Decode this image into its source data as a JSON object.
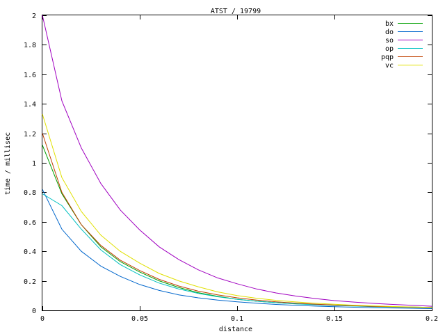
{
  "chart_data": {
    "type": "line",
    "title": "ATST / 19799",
    "xlabel": "distance",
    "ylabel": "time / millisec",
    "xlim": [
      0,
      0.2
    ],
    "ylim": [
      0,
      2
    ],
    "xticks": [
      "0",
      "0.05",
      "0.1",
      "0.15",
      "0.2"
    ],
    "xtick_values": [
      0,
      0.05,
      0.1,
      0.15,
      0.2
    ],
    "yticks": [
      "0",
      "0.2",
      "0.4",
      "0.6",
      "0.8",
      "1",
      "1.2",
      "1.4",
      "1.6",
      "1.8",
      "2"
    ],
    "ytick_values": [
      0,
      0.2,
      0.4,
      0.6,
      0.8,
      1.0,
      1.2,
      1.4,
      1.6,
      1.8,
      2.0
    ],
    "grid": false,
    "legend_position": "top-right",
    "x": [
      0,
      0.01,
      0.02,
      0.03,
      0.04,
      0.05,
      0.06,
      0.07,
      0.08,
      0.09,
      0.1,
      0.11,
      0.12,
      0.13,
      0.14,
      0.15,
      0.16,
      0.17,
      0.18,
      0.19,
      0.2
    ],
    "series": [
      {
        "name": "bx",
        "color": "#00a000",
        "values": [
          1.12,
          0.79,
          0.58,
          0.43,
          0.33,
          0.26,
          0.2,
          0.155,
          0.12,
          0.095,
          0.075,
          0.062,
          0.052,
          0.045,
          0.039,
          0.034,
          0.03,
          0.027,
          0.024,
          0.022,
          0.02
        ]
      },
      {
        "name": "do",
        "color": "#0066cc",
        "values": [
          0.82,
          0.55,
          0.4,
          0.3,
          0.23,
          0.175,
          0.135,
          0.105,
          0.085,
          0.07,
          0.058,
          0.048,
          0.04,
          0.034,
          0.029,
          0.025,
          0.021,
          0.018,
          0.016,
          0.014,
          0.012
        ]
      },
      {
        "name": "so",
        "color": "#a000c0",
        "values": [
          2.0,
          1.42,
          1.1,
          0.86,
          0.68,
          0.545,
          0.43,
          0.345,
          0.275,
          0.22,
          0.18,
          0.145,
          0.118,
          0.097,
          0.08,
          0.066,
          0.056,
          0.047,
          0.04,
          0.034,
          0.028
        ]
      },
      {
        "name": "op",
        "color": "#00c0c0",
        "values": [
          0.79,
          0.71,
          0.55,
          0.41,
          0.31,
          0.24,
          0.185,
          0.145,
          0.115,
          0.092,
          0.075,
          0.062,
          0.052,
          0.044,
          0.038,
          0.033,
          0.029,
          0.025,
          0.022,
          0.02,
          0.018
        ]
      },
      {
        "name": "pqp",
        "color": "#c04000",
        "values": [
          1.2,
          0.8,
          0.58,
          0.44,
          0.34,
          0.27,
          0.21,
          0.165,
          0.13,
          0.105,
          0.085,
          0.07,
          0.058,
          0.049,
          0.042,
          0.036,
          0.031,
          0.027,
          0.024,
          0.021,
          0.019
        ]
      },
      {
        "name": "vc",
        "color": "#e0e000",
        "values": [
          1.33,
          0.9,
          0.67,
          0.51,
          0.4,
          0.32,
          0.25,
          0.2,
          0.16,
          0.125,
          0.1,
          0.082,
          0.068,
          0.057,
          0.048,
          0.041,
          0.035,
          0.03,
          0.026,
          0.023,
          0.02
        ]
      }
    ]
  }
}
